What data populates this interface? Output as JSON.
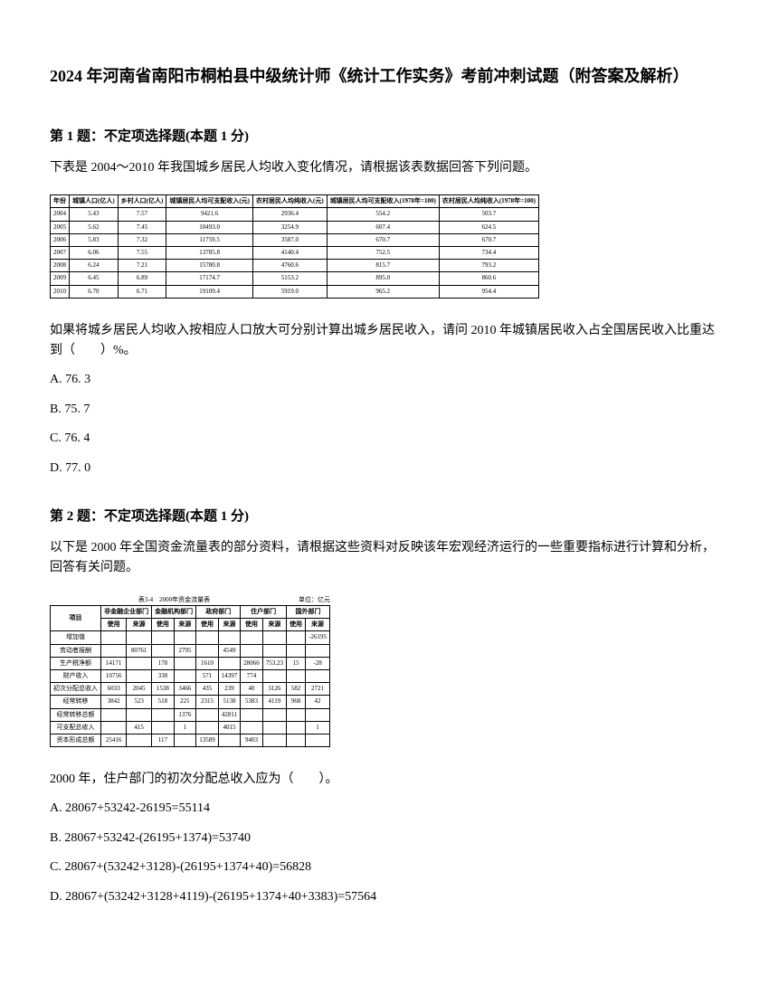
{
  "title": "2024 年河南省南阳市桐柏县中级统计师《统计工作实务》考前冲刺试题（附答案及解析）",
  "q1": {
    "header": "第 1 题：不定项选择题(本题 1 分)",
    "intro": "下表是 2004～2010 年我国城乡居民人均收入变化情况，请根据该表数据回答下列问题。",
    "table": {
      "headers": [
        "年份",
        "城镇人口(亿人)",
        "乡村人口(亿人)",
        "城镇居民人均可支配收入(元)",
        "农村居民人均纯收入(元)",
        "城镇居民人均可支配收入(1978年=100)",
        "农村居民人均纯收入(1978年=100)"
      ],
      "rows": [
        [
          "2004",
          "5.43",
          "7.57",
          "9421.6",
          "2936.4",
          "554.2",
          "503.7"
        ],
        [
          "2005",
          "5.62",
          "7.45",
          "10493.0",
          "3254.9",
          "607.4",
          "624.5"
        ],
        [
          "2006",
          "5.83",
          "7.32",
          "11759.5",
          "3587.0",
          "670.7",
          "670.7"
        ],
        [
          "2007",
          "6.06",
          "7.55",
          "13785.8",
          "4140.4",
          "752.5",
          "734.4"
        ],
        [
          "2008",
          "6.24",
          "7.21",
          "15780.8",
          "4760.6",
          "815.7",
          "793.2"
        ],
        [
          "2009",
          "6.45",
          "6.89",
          "17174.7",
          "5153.2",
          "895.0",
          "860.6"
        ],
        [
          "2010",
          "6.70",
          "6.71",
          "19109.4",
          "5919.0",
          "965.2",
          "954.4"
        ]
      ]
    },
    "body": "如果将城乡居民人均收入按相应人口放大可分别计算出城乡居民收入，请问 2010 年城镇居民收入占全国居民收入比重达到（　　）%。",
    "options": {
      "a": "A. 76. 3",
      "b": "B. 75. 7",
      "c": "C. 76. 4",
      "d": "D. 77. 0"
    }
  },
  "q2": {
    "header": "第 2 题：不定项选择题(本题 1 分)",
    "intro": "以下是 2000 年全国资金流量表的部分资料，请根据这些资料对反映该年宏观经济运行的一些重要指标进行计算和分析，回答有关问题。",
    "tableTitle": "表3-4　2000年资金流量表",
    "tableUnit": "单位：亿元",
    "table": {
      "headers1": [
        "项目",
        "非金融企业部门",
        "金融机构部门",
        "政府部门",
        "住户部门",
        "国外部门"
      ],
      "headers2": [
        "",
        "使用",
        "来源",
        "使用",
        "来源",
        "使用",
        "来源",
        "使用",
        "来源",
        "使用",
        "来源"
      ],
      "rows": [
        [
          "增加值",
          "",
          "",
          "",
          "",
          "",
          "",
          "",
          "",
          "",
          "-26195"
        ],
        [
          "劳动者报酬",
          "",
          "80761",
          "",
          "2795",
          "",
          "4549",
          "",
          "",
          "",
          ""
        ],
        [
          "生产税净额",
          "14171",
          "",
          "178",
          "",
          "1610",
          "",
          "28066",
          "753.23",
          "15",
          "-28"
        ],
        [
          "财产收入",
          "10756",
          "",
          "338",
          "",
          "571",
          "14397",
          "774",
          "",
          "",
          ""
        ],
        [
          "初次分配总收入",
          "6033",
          "2045",
          "1538",
          "3466",
          "435",
          "239",
          "40",
          "3126",
          "582",
          "2721"
        ],
        [
          "经常转移",
          "3842",
          "523",
          "518",
          "221",
          "2315",
          "5138",
          "5383",
          "4119",
          "968",
          "42"
        ],
        [
          "经常转移总额",
          "",
          "",
          "",
          "1376",
          "",
          "42811",
          "",
          "",
          "",
          ""
        ],
        [
          "可支配总收入",
          "",
          "415",
          "",
          "1",
          "",
          "4015",
          "",
          "",
          "",
          "1"
        ],
        [
          "资本形成总额",
          "25416",
          "",
          "117",
          "",
          "13589",
          "",
          "9403",
          "",
          "",
          ""
        ]
      ]
    },
    "body": "2000 年，住户部门的初次分配总收入应为（　　）。",
    "options": {
      "a": "A. 28067+53242-26195=55114",
      "b": "B. 28067+53242-(26195+1374)=53740",
      "c": "C. 28067+(53242+3128)-(26195+1374+40)=56828",
      "d": "D. 28067+(53242+3128+4119)-(26195+1374+40+3383)=57564"
    }
  }
}
